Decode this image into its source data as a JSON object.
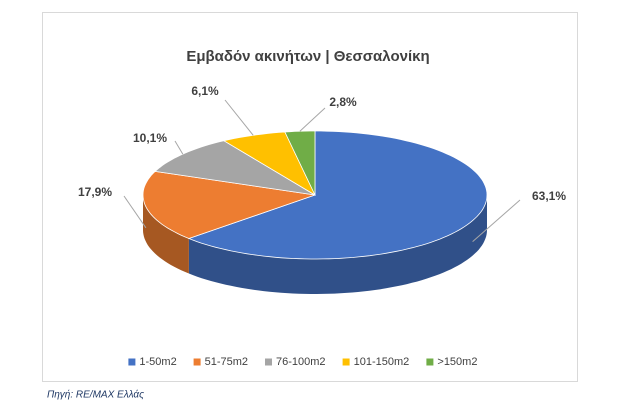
{
  "chart_data": {
    "type": "pie3d",
    "title": "Εμβαδόν ακινήτων | Θεσσαλονίκη",
    "categories": [
      "1-50m2",
      "51-75m2",
      "76-100m2",
      "101-150m2",
      ">150m2"
    ],
    "values": [
      63.1,
      17.9,
      10.1,
      6.1,
      2.8
    ],
    "value_labels": [
      "63,1%",
      "17,9%",
      "10,1%",
      "6,1%",
      "2,8%"
    ],
    "colors": [
      "#4472c4",
      "#ed7d31",
      "#a5a5a5",
      "#ffc000",
      "#70ad47"
    ],
    "legend": "bottom",
    "source": "Πηγή: RE/MAX Ελλάς"
  }
}
